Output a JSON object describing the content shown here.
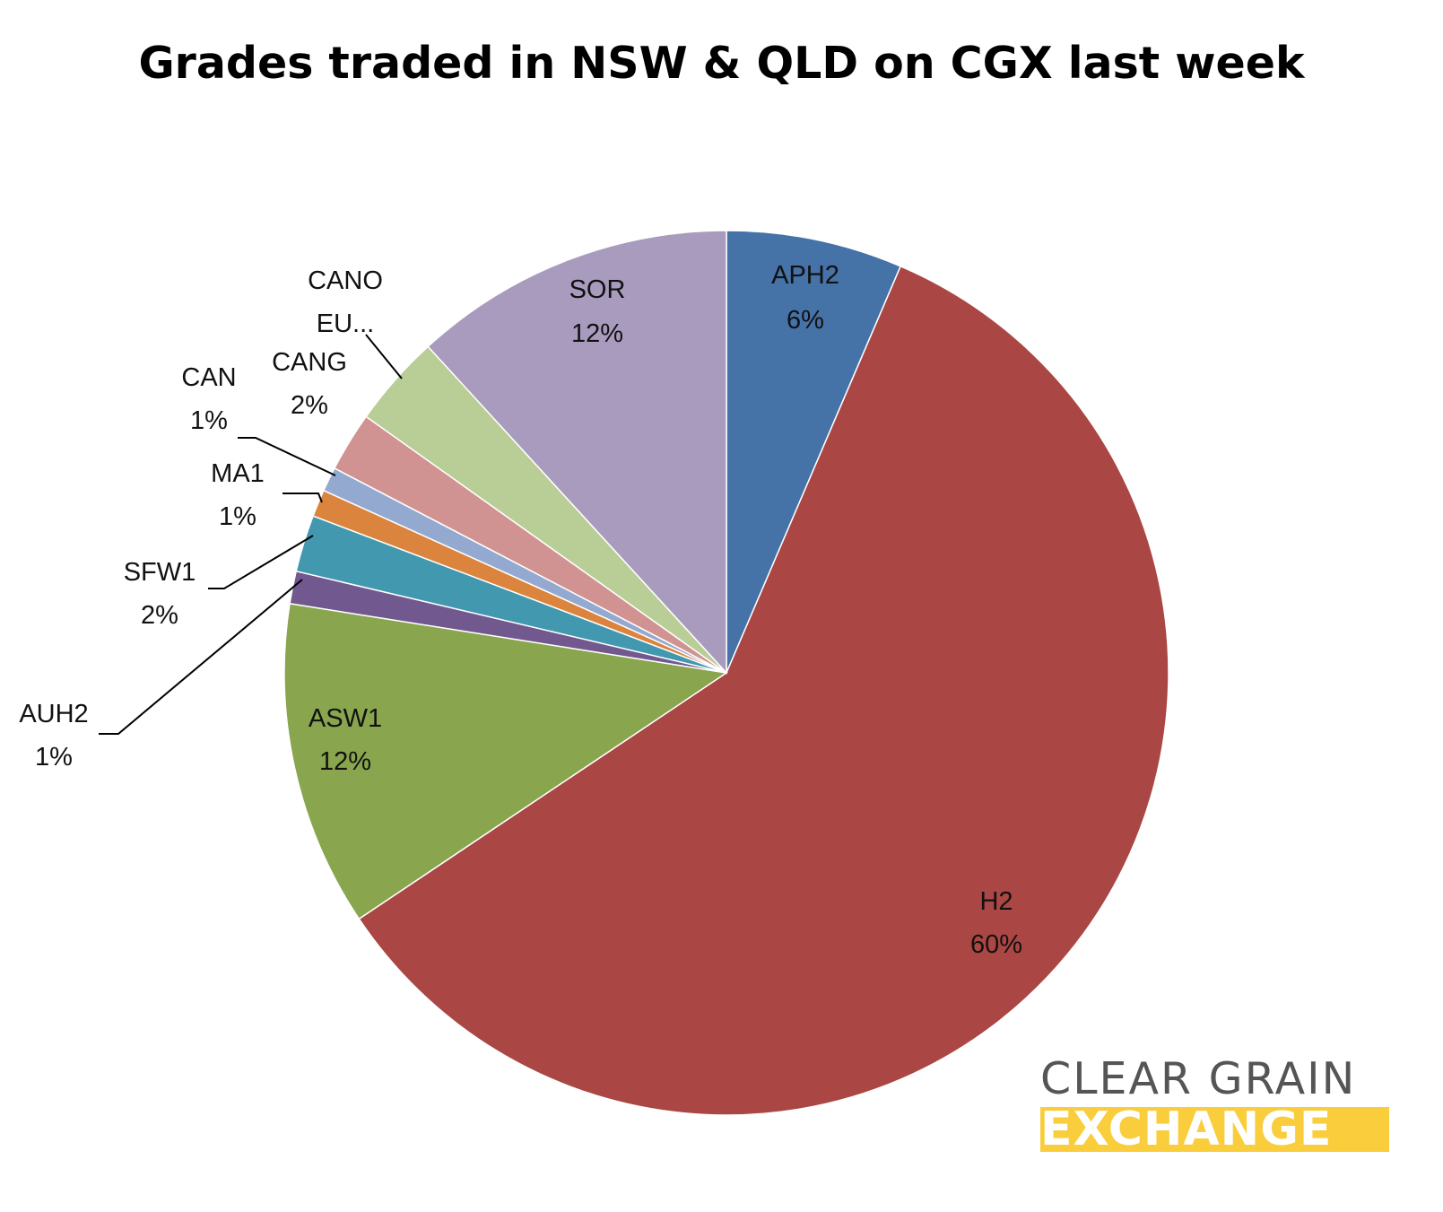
{
  "chart_data": {
    "type": "pie",
    "title": "Grades traded in NSW & QLD on CGX last week",
    "slices": [
      {
        "label": "APH2",
        "percent_label": "6%",
        "value": 6.5,
        "color": "#4572a7"
      },
      {
        "label": "H2",
        "percent_label": "60%",
        "value": 59.7,
        "color": "#aa4643"
      },
      {
        "label": "ASW1",
        "percent_label": "12%",
        "value": 12.0,
        "color": "#89a54e"
      },
      {
        "label": "AUH2",
        "percent_label": "1%",
        "value": 1.2,
        "color": "#71588f"
      },
      {
        "label": "SFW1",
        "percent_label": "2%",
        "value": 2.1,
        "color": "#4198af"
      },
      {
        "label": "MA1",
        "percent_label": "1%",
        "value": 1.0,
        "color": "#db843d"
      },
      {
        "label": "CAN",
        "percent_label": "1%",
        "value": 0.9,
        "color": "#93a9cf"
      },
      {
        "label": "CANG",
        "percent_label": "2%",
        "value": 2.2,
        "color": "#d19392"
      },
      {
        "label": "CANO",
        "percent_label": "EU...",
        "value": 3.4,
        "color": "#b9cd96"
      },
      {
        "label": "SOR",
        "percent_label": "12%",
        "value": 11.9,
        "color": "#a99bbd"
      }
    ]
  },
  "logo": {
    "line1": "CLEAR GRAIN",
    "line2": "EXCHANGE"
  }
}
